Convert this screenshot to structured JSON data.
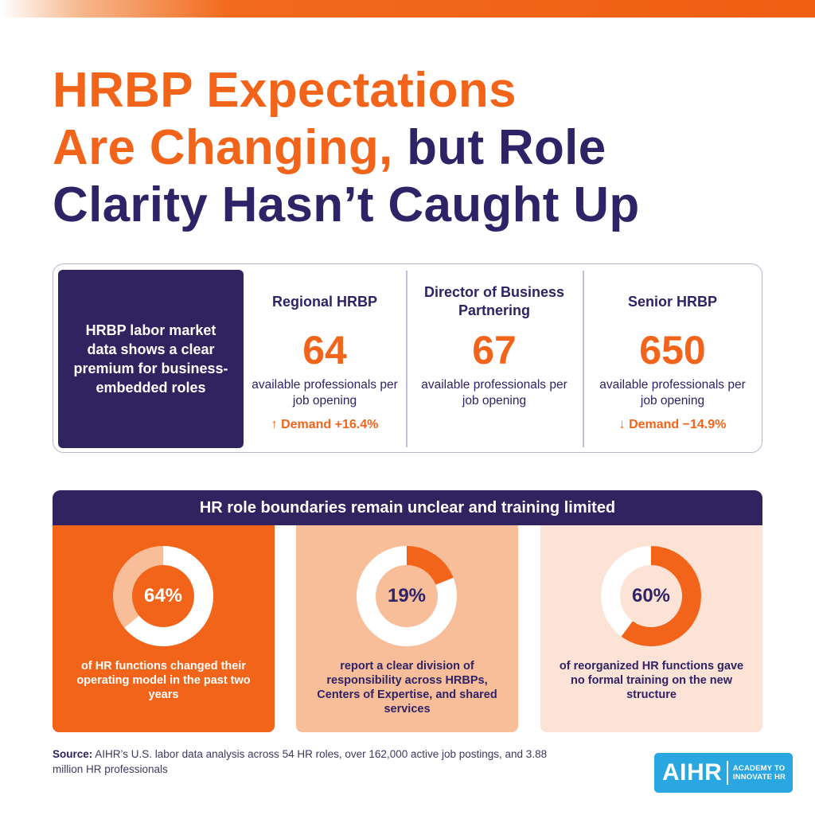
{
  "title": {
    "line1": "HRBP Expectations",
    "line2_orange": "Are Changing,",
    "line2_navy": "but Role",
    "line3": "Clarity Hasn’t Caught Up"
  },
  "stats": {
    "intro": "HRBP labor market data shows a clear premium for business-embedded roles",
    "items": [
      {
        "title": "Regional HRBP",
        "value": "64",
        "desc": "available professionals per job opening",
        "trend": "↑ Demand +16.4%"
      },
      {
        "title": "Director of Business Partnering",
        "value": "67",
        "desc": "available professionals per job opening",
        "trend": ""
      },
      {
        "title": "Senior HRBP",
        "value": "650",
        "desc": "available professionals per job opening",
        "trend": "↓ Demand −14.9%"
      }
    ]
  },
  "boundaries": {
    "header": "HR role boundaries remain unclear and training limited",
    "cards": [
      {
        "label": "64%",
        "percent": 64,
        "desc": "of HR functions changed their operating model in the past two years"
      },
      {
        "label": "19%",
        "percent": 19,
        "desc": "report a clear division of responsibility across HRBPs, Centers of Expertise, and shared services"
      },
      {
        "label": "60%",
        "percent": 60,
        "desc": "of reorganized HR functions gave no formal training on the new structure"
      }
    ]
  },
  "source": {
    "prefix": "Source:",
    "text": "AIHR’s U.S. labor data analysis across 54 HR roles, over 162,000 active job postings, and 3.88 million HR professionals"
  },
  "logo": {
    "mark": "AIHR",
    "tagline_1": "ACADEMY TO",
    "tagline_2": "INNOVATE HR"
  },
  "colors": {
    "orange": "#f26419",
    "navy": "#2d2366",
    "light_orange": "#f8bd99",
    "pale_orange": "#fde3d6",
    "logo_blue": "#2aa6e0"
  }
}
